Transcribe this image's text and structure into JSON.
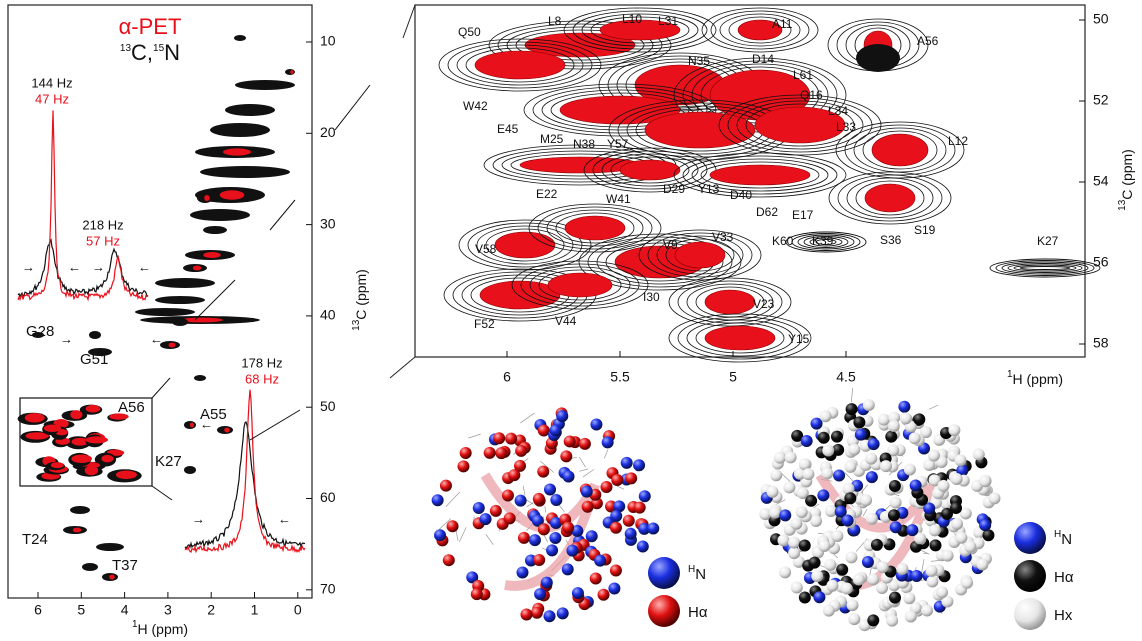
{
  "left_panel": {
    "title": "α-PET",
    "subtitle": [
      "13",
      "C,",
      "15",
      "N"
    ],
    "y_label": [
      "13",
      "C (ppm)"
    ],
    "x_label": [
      "1",
      "H (ppm)"
    ],
    "yticks": [
      "10",
      "20",
      "30",
      "40",
      "50",
      "60",
      "70"
    ],
    "xticks": [
      "6",
      "5",
      "4",
      "3",
      "2",
      "1",
      "0"
    ],
    "linewidths": [
      {
        "black": "144 Hz",
        "red": "47 Hz"
      },
      {
        "black": "218 Hz",
        "red": "57 Hz"
      },
      {
        "black": "178 Hz",
        "red": "68 Hz"
      }
    ],
    "peaks": [
      "G28",
      "G51",
      "A56",
      "A55",
      "K27",
      "T24",
      "T37"
    ]
  },
  "right_panel": {
    "y_label": [
      "13",
      "C (ppm)"
    ],
    "x_label": [
      "1",
      "H (ppm)"
    ],
    "yticks": [
      "50",
      "52",
      "54",
      "56",
      "58"
    ],
    "xticks": [
      "6",
      "5.5",
      "5",
      "4.5"
    ],
    "peaks": [
      "Q50",
      "L8",
      "L10",
      "L31",
      "A11",
      "A56",
      "N35",
      "D14",
      "L61",
      "Q16",
      "L34",
      "L33",
      "W42",
      "E45",
      "M25",
      "N38",
      "Y57",
      "L12",
      "E22",
      "W41",
      "D29",
      "Y13",
      "D40",
      "D62",
      "E17",
      "S19",
      "S36",
      "V58",
      "V9",
      "V33",
      "K60",
      "K39",
      "K27",
      "I30",
      "V23",
      "F52",
      "V44",
      "Y15"
    ]
  },
  "structures": {
    "left_legend": [
      [
        "H",
        "N"
      ],
      [
        "Hα"
      ]
    ],
    "right_legend": [
      [
        "H",
        "N"
      ],
      [
        "Hα"
      ],
      [
        "Hx"
      ]
    ]
  }
}
